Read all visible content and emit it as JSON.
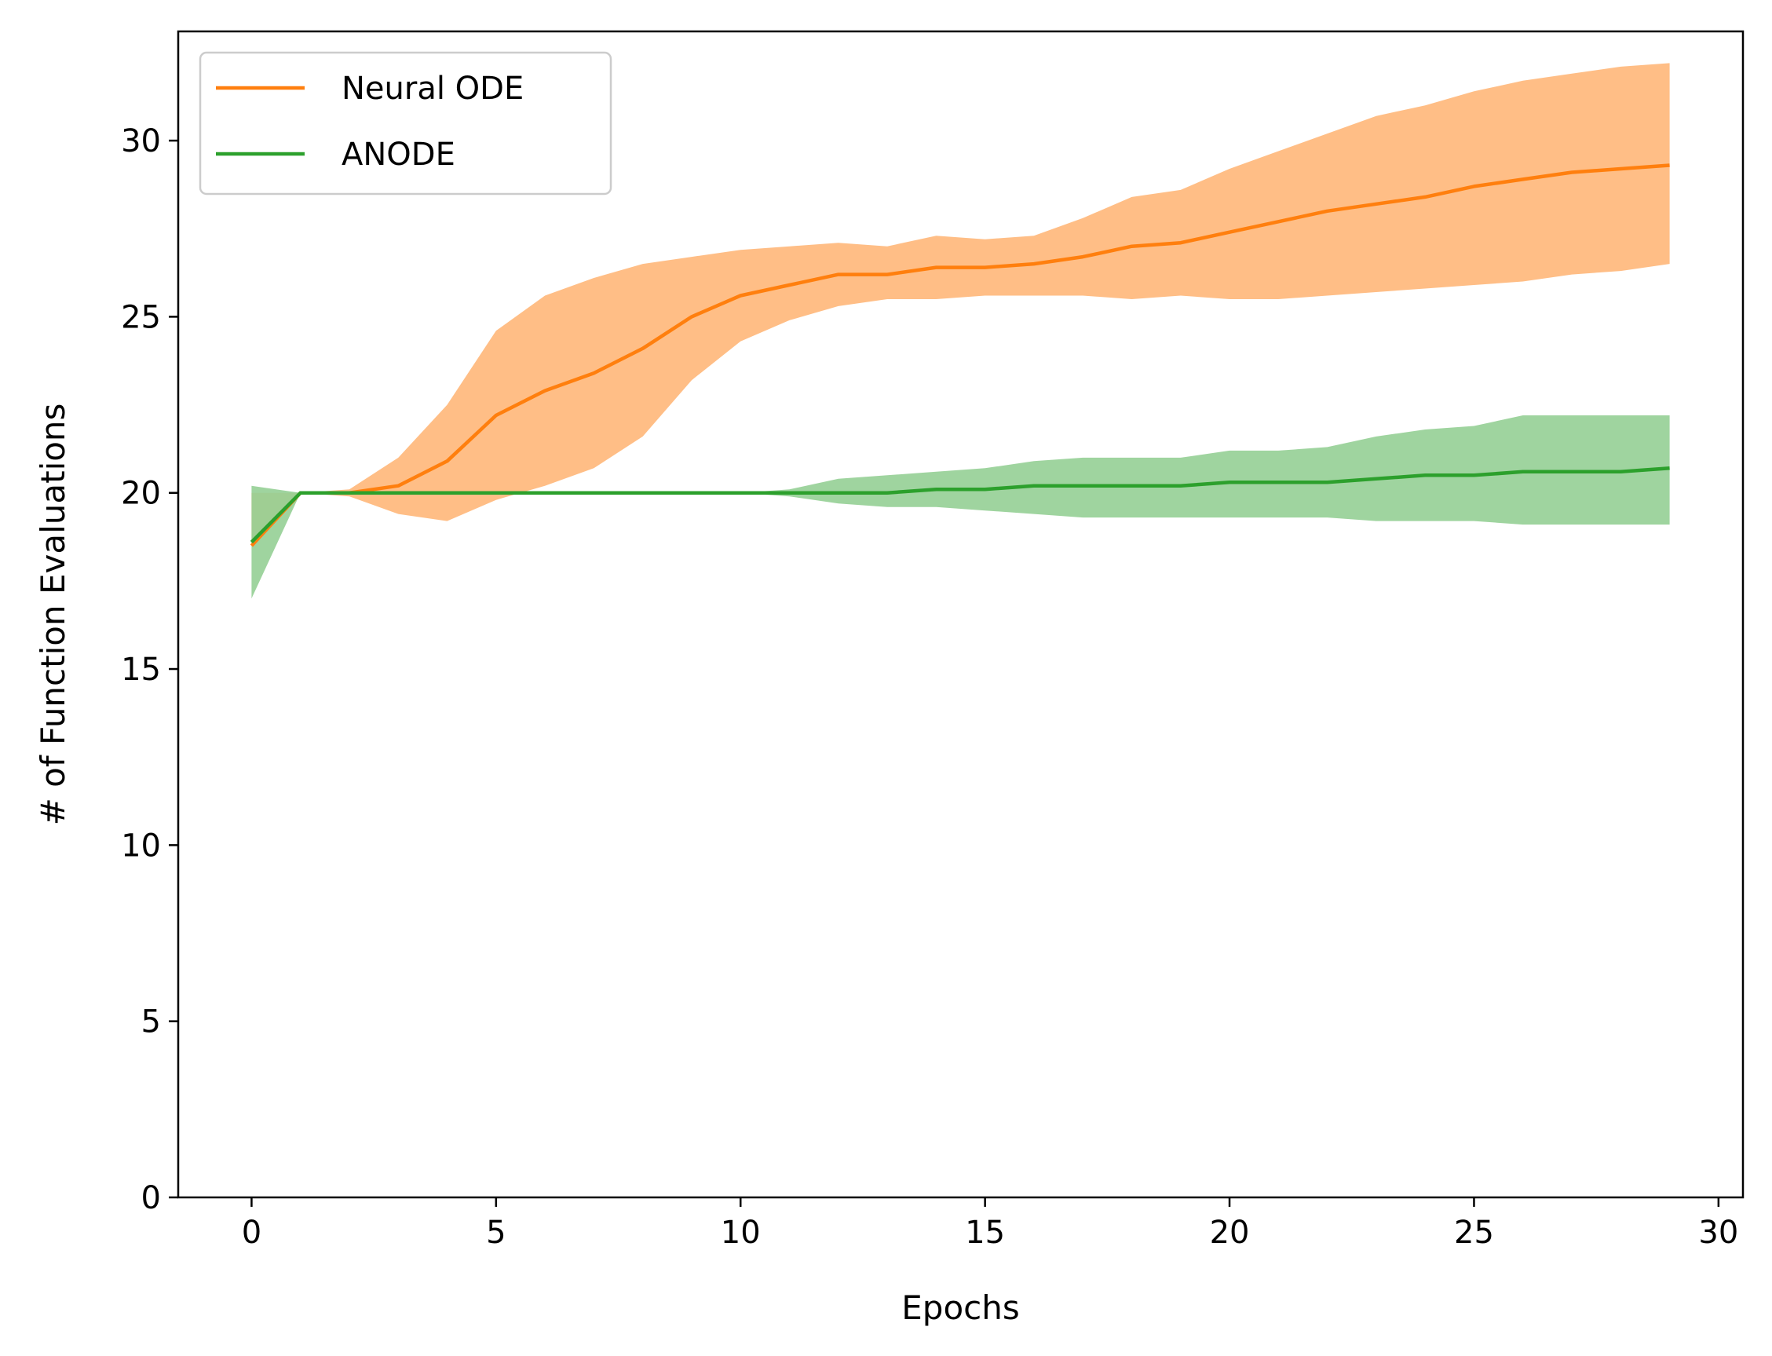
{
  "chart_data": {
    "type": "line",
    "xlabel": "Epochs",
    "ylabel": "# of Function Evaluations",
    "xlim": [
      -1.5,
      30.5
    ],
    "ylim": [
      0,
      33.1
    ],
    "xticks": [
      0,
      5,
      10,
      15,
      20,
      25,
      30
    ],
    "yticks": [
      0,
      5,
      10,
      15,
      20,
      25,
      30
    ],
    "grid": false,
    "legend_position": "top-left",
    "x": [
      0,
      1,
      2,
      3,
      4,
      5,
      6,
      7,
      8,
      9,
      10,
      11,
      12,
      13,
      14,
      15,
      16,
      17,
      18,
      19,
      20,
      21,
      22,
      23,
      24,
      25,
      26,
      27,
      28,
      29
    ],
    "series": [
      {
        "name": "Neural ODE",
        "color": "#ff7f0e",
        "band_color": "#ffbe86",
        "values": [
          18.5,
          20.0,
          20.0,
          20.2,
          20.9,
          22.2,
          22.9,
          23.4,
          24.1,
          25.0,
          25.6,
          25.9,
          26.2,
          26.2,
          26.4,
          26.4,
          26.5,
          26.7,
          27.0,
          27.1,
          27.4,
          27.7,
          28.0,
          28.2,
          28.4,
          28.7,
          28.9,
          29.1,
          29.2,
          29.3
        ],
        "upper": [
          20.0,
          20.0,
          20.1,
          21.0,
          22.5,
          24.6,
          25.6,
          26.1,
          26.5,
          26.7,
          26.9,
          27.0,
          27.1,
          27.0,
          27.3,
          27.2,
          27.3,
          27.8,
          28.4,
          28.6,
          29.2,
          29.7,
          30.2,
          30.7,
          31.0,
          31.4,
          31.7,
          31.9,
          32.1,
          32.2
        ],
        "lower": [
          18.5,
          20.0,
          19.9,
          19.4,
          19.2,
          19.8,
          20.2,
          20.7,
          21.6,
          23.2,
          24.3,
          24.9,
          25.3,
          25.5,
          25.5,
          25.6,
          25.6,
          25.6,
          25.5,
          25.6,
          25.5,
          25.5,
          25.6,
          25.7,
          25.8,
          25.9,
          26.0,
          26.2,
          26.3,
          26.5
        ]
      },
      {
        "name": "ANODE",
        "color": "#2ca02c",
        "band_color": "#95cf95",
        "values": [
          18.6,
          20.0,
          20.0,
          20.0,
          20.0,
          20.0,
          20.0,
          20.0,
          20.0,
          20.0,
          20.0,
          20.0,
          20.0,
          20.0,
          20.1,
          20.1,
          20.2,
          20.2,
          20.2,
          20.2,
          20.3,
          20.3,
          20.3,
          20.4,
          20.5,
          20.5,
          20.6,
          20.6,
          20.6,
          20.7
        ],
        "upper": [
          20.2,
          20.0,
          20.0,
          20.0,
          20.0,
          20.0,
          20.0,
          20.0,
          20.0,
          20.0,
          20.0,
          20.1,
          20.4,
          20.5,
          20.6,
          20.7,
          20.9,
          21.0,
          21.0,
          21.0,
          21.2,
          21.2,
          21.3,
          21.6,
          21.8,
          21.9,
          22.2,
          22.2,
          22.2,
          22.2
        ],
        "lower": [
          17.0,
          20.0,
          20.0,
          20.0,
          20.0,
          20.0,
          20.0,
          20.0,
          20.0,
          20.0,
          20.0,
          19.9,
          19.7,
          19.6,
          19.6,
          19.5,
          19.4,
          19.3,
          19.3,
          19.3,
          19.3,
          19.3,
          19.3,
          19.2,
          19.2,
          19.2,
          19.1,
          19.1,
          19.1,
          19.1
        ]
      }
    ]
  }
}
